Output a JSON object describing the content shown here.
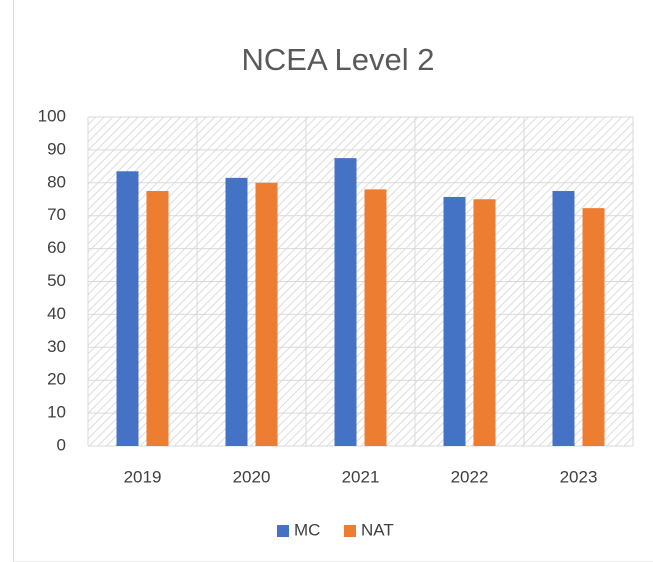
{
  "chart_data": {
    "type": "bar",
    "title": "NCEA Level 2",
    "categories": [
      "2019",
      "2020",
      "2021",
      "2022",
      "2023"
    ],
    "series": [
      {
        "name": "MC",
        "color": "#4472c4",
        "values": [
          83.5,
          81.5,
          87.5,
          75.7,
          77.5
        ]
      },
      {
        "name": "NAT",
        "color": "#ed7d31",
        "values": [
          77.5,
          80,
          78,
          75,
          72.3
        ]
      }
    ],
    "ylim": [
      0,
      100
    ],
    "yticks": [
      0,
      10,
      20,
      30,
      40,
      50,
      60,
      70,
      80,
      90,
      100
    ],
    "grid": true,
    "legend": "bottom"
  }
}
